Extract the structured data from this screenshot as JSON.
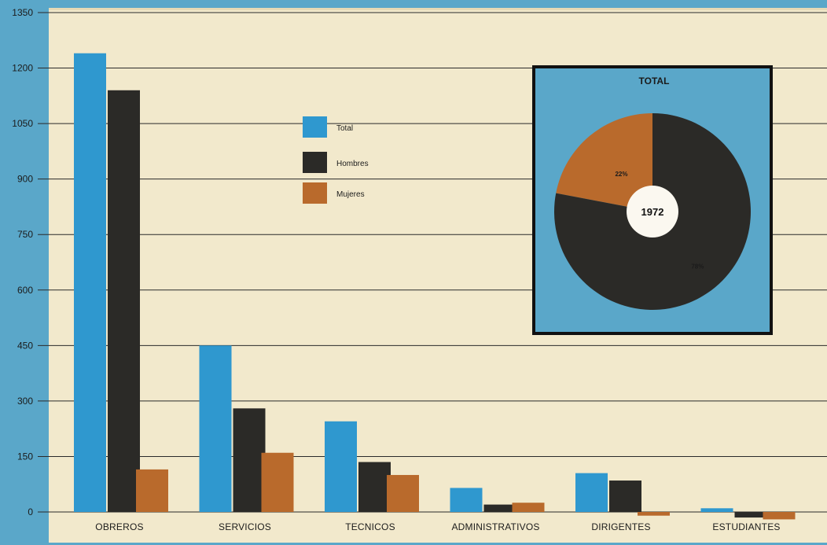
{
  "chart_data": [
    {
      "type": "bar",
      "title": "",
      "xlabel": "",
      "ylabel": "",
      "ylim": [
        0,
        1350
      ],
      "yticks": [
        0,
        150,
        300,
        450,
        600,
        750,
        900,
        1050,
        1200,
        1350
      ],
      "categories": [
        "OBREROS",
        "SERVICIOS",
        "TECNICOS",
        "ADMINISTRATIVOS",
        "DIRIGENTES",
        "ESTUDIANTES"
      ],
      "series": [
        {
          "name": "Total",
          "color": "#2f98cf",
          "values": [
            1240,
            450,
            245,
            65,
            105,
            10
          ]
        },
        {
          "name": "Hombres",
          "color": "#2b2a27",
          "values": [
            1140,
            280,
            135,
            20,
            85,
            -15
          ]
        },
        {
          "name": "Mujeres",
          "color": "#b96a2c",
          "values": [
            115,
            160,
            100,
            25,
            -10,
            -20
          ]
        }
      ],
      "grid": true,
      "legend": "upper-center"
    },
    {
      "type": "pie",
      "title": "TOTAL",
      "center_label": "1972",
      "slices": [
        {
          "label": "22%",
          "value": 22,
          "color": "#b96a2c"
        },
        {
          "label": "78%",
          "value": 78,
          "color": "#2b2a27"
        }
      ]
    }
  ]
}
